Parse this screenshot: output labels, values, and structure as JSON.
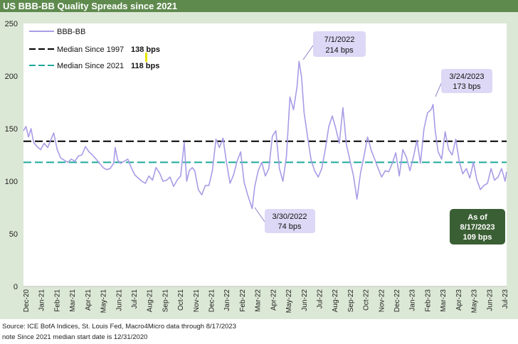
{
  "header": {
    "title": "US BBB-BB Quality Spreads since 2021"
  },
  "colors": {
    "header_bg": "#5f8a4e",
    "plot_bg": "#dce8d6",
    "series": "#a99be6",
    "median_1997": "#000000",
    "median_2021": "#1ea99a",
    "callout_bg": "#ddd8f5",
    "asof_bg": "#3b5f34",
    "highlight": "#e6e600"
  },
  "legend": {
    "series": "BBB-BB",
    "m1997_label": "Median Since 1997",
    "m1997_value": "138 bps",
    "m2021_label": "Median Since 2021",
    "m2021_value": "118 bps"
  },
  "callouts": {
    "peak2022_date": "7/1/2022",
    "peak2022_value": "214 bps",
    "peak2023_date": "3/24/2023",
    "peak2023_value": "173 bps",
    "low2022_date": "3/30/2022",
    "low2022_value": "74 bps",
    "asof_line1": "As of",
    "asof_line2": "8/17/2023",
    "asof_line3": "109 bps"
  },
  "footer": {
    "source": "Source: ICE BofA Indices, St. Louis Fed, Macro4Micro     data through 8/17/2023",
    "note": "note Since 2021 median start date is 12/31/2020"
  },
  "chart_data": {
    "type": "line",
    "ylim": [
      0,
      250
    ],
    "yticks": [
      0,
      50,
      100,
      150,
      200,
      250
    ],
    "x_start": "2020-12-31",
    "x_end": "2023-08-17",
    "categories": [
      "Dec-20",
      "Jan-21",
      "Feb-21",
      "Mar-21",
      "Apr-21",
      "May-21",
      "Jun-21",
      "Jul-21",
      "Aug-21",
      "Sep-21",
      "Oct-21",
      "Nov-21",
      "Dec-21",
      "Jan-22",
      "Feb-22",
      "Mar-22",
      "Apr-22",
      "May-22",
      "Jun-22",
      "Jul-22",
      "Aug-22",
      "Sep-22",
      "Oct-22",
      "Nov-22",
      "Dec-22",
      "Jan-23",
      "Feb-23",
      "Mar-23",
      "Apr-23",
      "May-23",
      "Jun-23",
      "Jul-23"
    ],
    "hlines": [
      {
        "name": "Median Since 1997",
        "value": 138
      },
      {
        "name": "Median Since 2021",
        "value": 118
      }
    ],
    "series": [
      {
        "name": "BBB-BB",
        "points": [
          [
            "2020-12-31",
            148
          ],
          [
            "2021-01-05",
            152
          ],
          [
            "2021-01-10",
            142
          ],
          [
            "2021-01-15",
            150
          ],
          [
            "2021-01-20",
            137
          ],
          [
            "2021-01-27",
            133
          ],
          [
            "2021-02-03",
            130
          ],
          [
            "2021-02-10",
            136
          ],
          [
            "2021-02-17",
            132
          ],
          [
            "2021-02-24",
            140
          ],
          [
            "2021-03-01",
            146
          ],
          [
            "2021-03-08",
            130
          ],
          [
            "2021-03-15",
            122
          ],
          [
            "2021-03-22",
            120
          ],
          [
            "2021-03-29",
            118
          ],
          [
            "2021-04-05",
            121
          ],
          [
            "2021-04-12",
            119
          ],
          [
            "2021-04-19",
            124
          ],
          [
            "2021-04-26",
            125
          ],
          [
            "2021-05-03",
            133
          ],
          [
            "2021-05-10",
            128
          ],
          [
            "2021-05-17",
            125
          ],
          [
            "2021-05-24",
            121
          ],
          [
            "2021-05-31",
            117
          ],
          [
            "2021-06-07",
            113
          ],
          [
            "2021-06-14",
            111
          ],
          [
            "2021-06-21",
            112
          ],
          [
            "2021-06-28",
            117
          ],
          [
            "2021-07-01",
            132
          ],
          [
            "2021-07-06",
            120
          ],
          [
            "2021-07-12",
            117
          ],
          [
            "2021-07-19",
            119
          ],
          [
            "2021-07-26",
            121
          ],
          [
            "2021-08-02",
            113
          ],
          [
            "2021-08-09",
            106
          ],
          [
            "2021-08-16",
            103
          ],
          [
            "2021-08-23",
            100
          ],
          [
            "2021-08-30",
            98
          ],
          [
            "2021-09-06",
            105
          ],
          [
            "2021-09-13",
            101
          ],
          [
            "2021-09-20",
            113
          ],
          [
            "2021-09-27",
            108
          ],
          [
            "2021-10-04",
            100
          ],
          [
            "2021-10-11",
            101
          ],
          [
            "2021-10-18",
            104
          ],
          [
            "2021-10-25",
            95
          ],
          [
            "2021-11-01",
            101
          ],
          [
            "2021-11-08",
            105
          ],
          [
            "2021-11-15",
            137
          ],
          [
            "2021-11-20",
            100
          ],
          [
            "2021-11-25",
            110
          ],
          [
            "2021-12-01",
            113
          ],
          [
            "2021-12-06",
            110
          ],
          [
            "2021-12-13",
            92
          ],
          [
            "2021-12-20",
            87
          ],
          [
            "2021-12-27",
            96
          ],
          [
            "2022-01-03",
            96
          ],
          [
            "2022-01-10",
            110
          ],
          [
            "2022-01-17",
            140
          ],
          [
            "2022-01-24",
            132
          ],
          [
            "2022-01-31",
            141
          ],
          [
            "2022-02-07",
            118
          ],
          [
            "2022-02-14",
            98
          ],
          [
            "2022-02-21",
            106
          ],
          [
            "2022-02-28",
            119
          ],
          [
            "2022-03-07",
            128
          ],
          [
            "2022-03-14",
            99
          ],
          [
            "2022-03-21",
            87
          ],
          [
            "2022-03-30",
            74
          ],
          [
            "2022-04-04",
            95
          ],
          [
            "2022-04-11",
            110
          ],
          [
            "2022-04-18",
            118
          ],
          [
            "2022-04-25",
            105
          ],
          [
            "2022-05-02",
            112
          ],
          [
            "2022-05-09",
            143
          ],
          [
            "2022-05-16",
            148
          ],
          [
            "2022-05-23",
            112
          ],
          [
            "2022-05-30",
            100
          ],
          [
            "2022-06-06",
            124
          ],
          [
            "2022-06-13",
            180
          ],
          [
            "2022-06-20",
            168
          ],
          [
            "2022-06-27",
            190
          ],
          [
            "2022-07-01",
            214
          ],
          [
            "2022-07-06",
            199
          ],
          [
            "2022-07-11",
            165
          ],
          [
            "2022-07-18",
            142
          ],
          [
            "2022-07-25",
            120
          ],
          [
            "2022-08-01",
            110
          ],
          [
            "2022-08-08",
            104
          ],
          [
            "2022-08-15",
            112
          ],
          [
            "2022-08-22",
            130
          ],
          [
            "2022-08-29",
            152
          ],
          [
            "2022-09-05",
            162
          ],
          [
            "2022-09-12",
            150
          ],
          [
            "2022-09-19",
            136
          ],
          [
            "2022-09-26",
            170
          ],
          [
            "2022-10-03",
            135
          ],
          [
            "2022-10-10",
            120
          ],
          [
            "2022-10-17",
            105
          ],
          [
            "2022-10-24",
            83
          ],
          [
            "2022-10-31",
            108
          ],
          [
            "2022-11-07",
            124
          ],
          [
            "2022-11-14",
            142
          ],
          [
            "2022-11-21",
            130
          ],
          [
            "2022-11-28",
            121
          ],
          [
            "2022-12-05",
            112
          ],
          [
            "2022-12-12",
            104
          ],
          [
            "2022-12-19",
            110
          ],
          [
            "2022-12-26",
            109
          ],
          [
            "2023-01-02",
            117
          ],
          [
            "2023-01-09",
            127
          ],
          [
            "2023-01-16",
            105
          ],
          [
            "2023-01-23",
            130
          ],
          [
            "2023-01-30",
            123
          ],
          [
            "2023-02-06",
            110
          ],
          [
            "2023-02-13",
            123
          ],
          [
            "2023-02-20",
            139
          ],
          [
            "2023-02-27",
            117
          ],
          [
            "2023-03-06",
            150
          ],
          [
            "2023-03-13",
            165
          ],
          [
            "2023-03-20",
            168
          ],
          [
            "2023-03-24",
            173
          ],
          [
            "2023-03-28",
            149
          ],
          [
            "2023-04-03",
            128
          ],
          [
            "2023-04-10",
            121
          ],
          [
            "2023-04-17",
            147
          ],
          [
            "2023-04-24",
            130
          ],
          [
            "2023-05-01",
            125
          ],
          [
            "2023-05-08",
            140
          ],
          [
            "2023-05-15",
            119
          ],
          [
            "2023-05-22",
            107
          ],
          [
            "2023-05-29",
            112
          ],
          [
            "2023-06-05",
            103
          ],
          [
            "2023-06-12",
            118
          ],
          [
            "2023-06-19",
            101
          ],
          [
            "2023-06-26",
            92
          ],
          [
            "2023-07-03",
            96
          ],
          [
            "2023-07-10",
            98
          ],
          [
            "2023-07-17",
            112
          ],
          [
            "2023-07-24",
            101
          ],
          [
            "2023-07-31",
            104
          ],
          [
            "2023-08-07",
            112
          ],
          [
            "2023-08-14",
            100
          ],
          [
            "2023-08-17",
            109
          ]
        ]
      }
    ]
  }
}
